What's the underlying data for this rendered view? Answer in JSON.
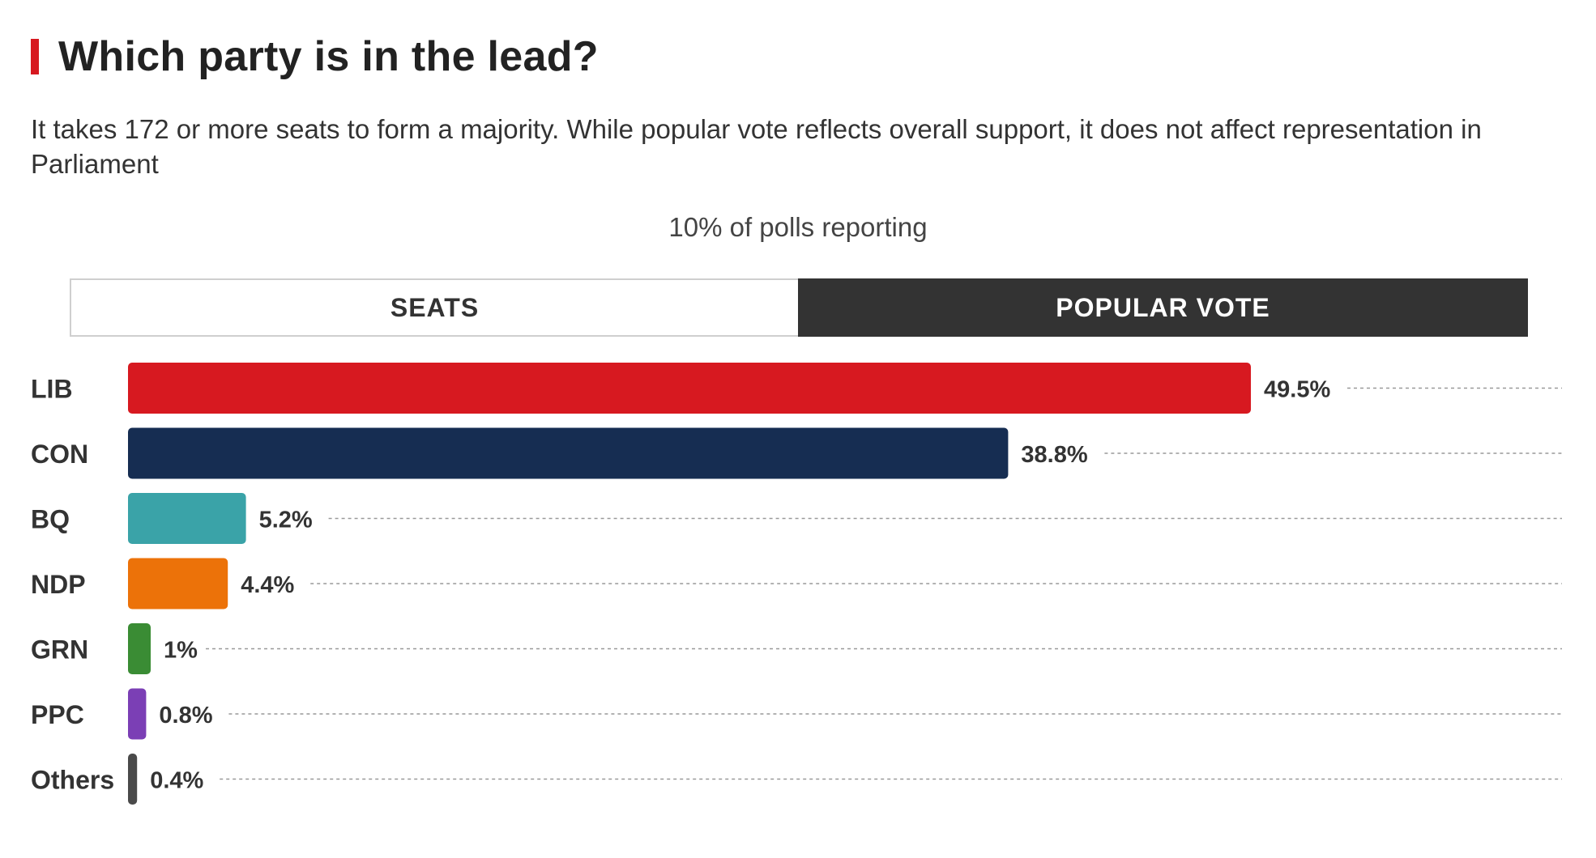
{
  "header": {
    "title": "Which party is in the lead?",
    "subtitle": "It takes 172 or more seats to form a majority. While popular vote reflects overall support, it does not affect representation in Parliament",
    "reporting": "10% of polls reporting"
  },
  "tabs": [
    {
      "label": "SEATS",
      "active": false
    },
    {
      "label": "POPULAR VOTE",
      "active": true
    }
  ],
  "colors": {
    "accent": "#d71920",
    "tab_active_bg": "#333333"
  },
  "chart_data": {
    "type": "bar",
    "orientation": "horizontal",
    "categories": [
      "LIB",
      "CON",
      "BQ",
      "NDP",
      "GRN",
      "PPC",
      "Others"
    ],
    "values": [
      49.5,
      38.8,
      5.2,
      4.4,
      1,
      0.8,
      0.4
    ],
    "value_labels": [
      "49.5%",
      "38.8%",
      "5.2%",
      "4.4%",
      "1%",
      "0.8%",
      "0.4%"
    ],
    "colors": [
      "#d71920",
      "#162d52",
      "#3aa3a8",
      "#ec7209",
      "#3a8c34",
      "#7b3fb5",
      "#4a4a4a"
    ],
    "unit": "%",
    "xlim": [
      0,
      62.5
    ],
    "grid": false,
    "leader_lines": "dashed"
  }
}
